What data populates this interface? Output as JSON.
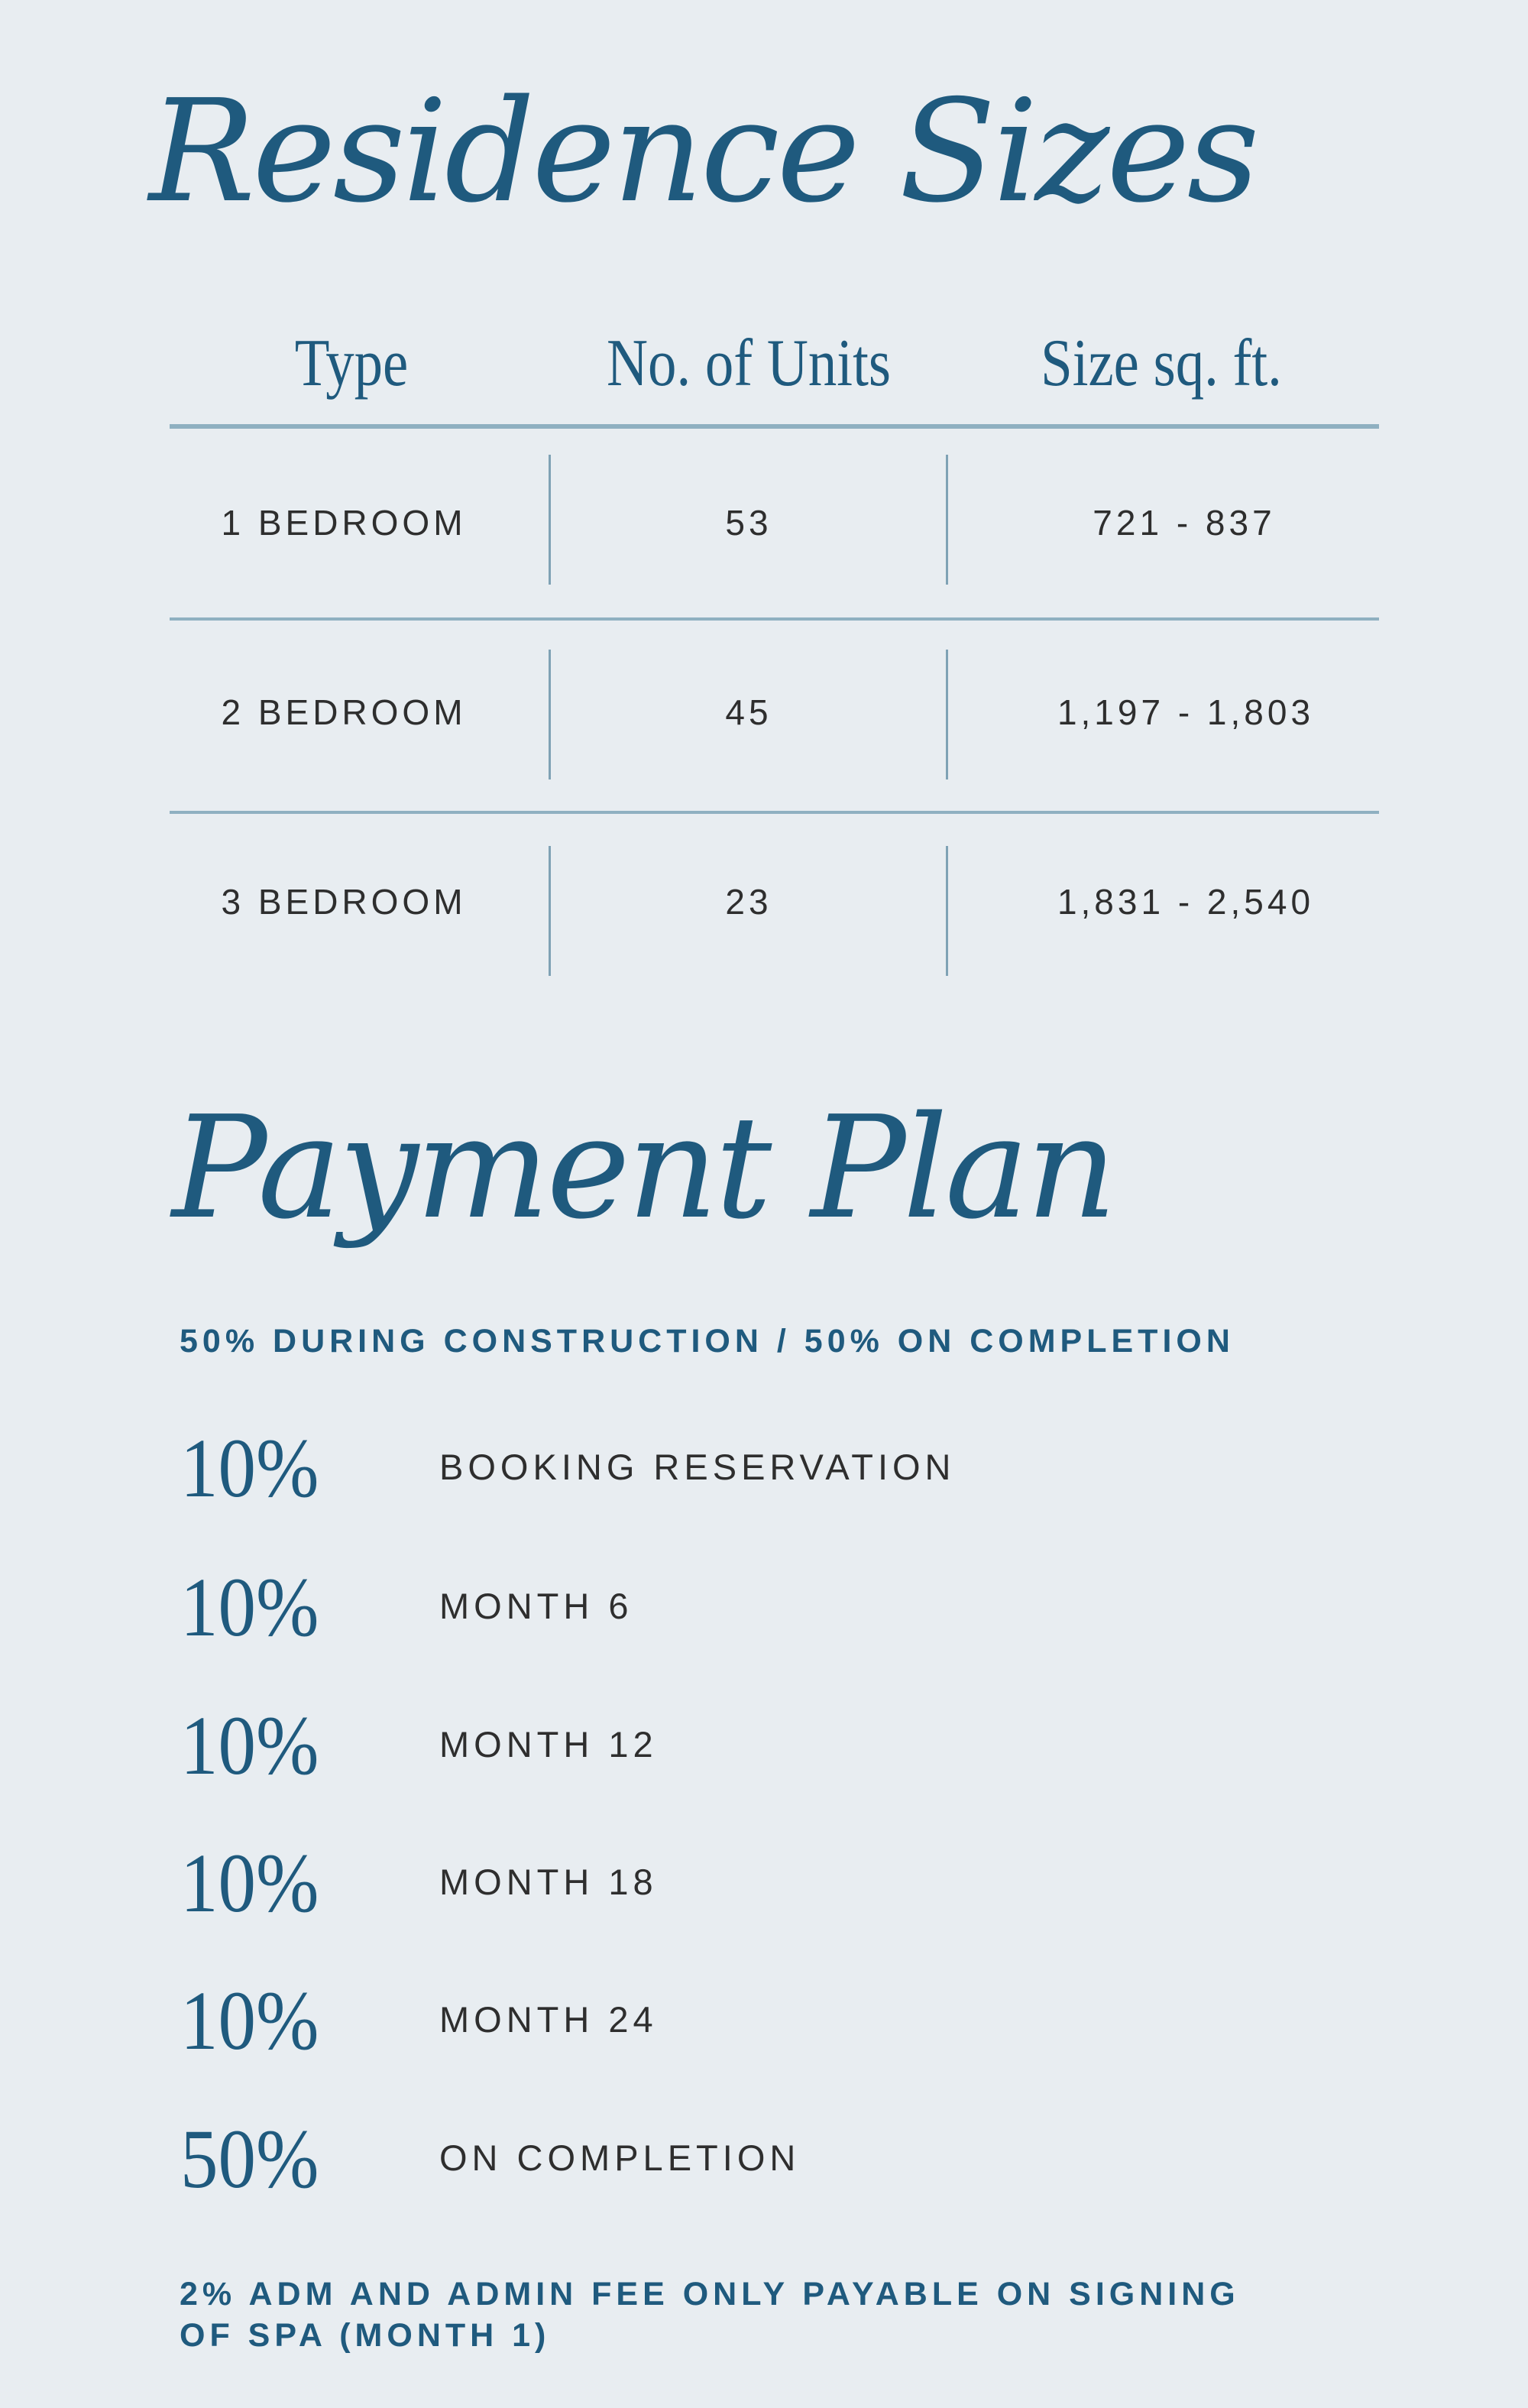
{
  "residence": {
    "title": "Residence Sizes",
    "headers": [
      "Type",
      "No. of Units",
      "Size sq. ft."
    ],
    "rows": [
      {
        "type": "1 BEDROOM",
        "units": "53",
        "size": "721 - 837"
      },
      {
        "type": "2 BEDROOM",
        "units": "45",
        "size": "1,197 - 1,803"
      },
      {
        "type": "3 BEDROOM",
        "units": "23",
        "size": "1,831 - 2,540"
      }
    ]
  },
  "payment": {
    "title": "Payment Plan",
    "subtitle": "50% DURING CONSTRUCTION / 50% ON COMPLETION",
    "items": [
      {
        "percent": "10%",
        "label": "BOOKING RESERVATION"
      },
      {
        "percent": "10%",
        "label": "MONTH 6"
      },
      {
        "percent": "10%",
        "label": "MONTH 12"
      },
      {
        "percent": "10%",
        "label": "MONTH 18"
      },
      {
        "percent": "10%",
        "label": "MONTH 24"
      },
      {
        "percent": "50%",
        "label": "ON COMPLETION"
      }
    ],
    "footnote_line1": "2% ADM AND ADMIN FEE ONLY PAYABLE ON SIGNING",
    "footnote_line2": "OF SPA (MONTH 1)"
  },
  "colors": {
    "accent": "#1f5a7e",
    "background": "#e8edf1",
    "rule": "#8fb0c1",
    "text": "#2e2e2e"
  }
}
